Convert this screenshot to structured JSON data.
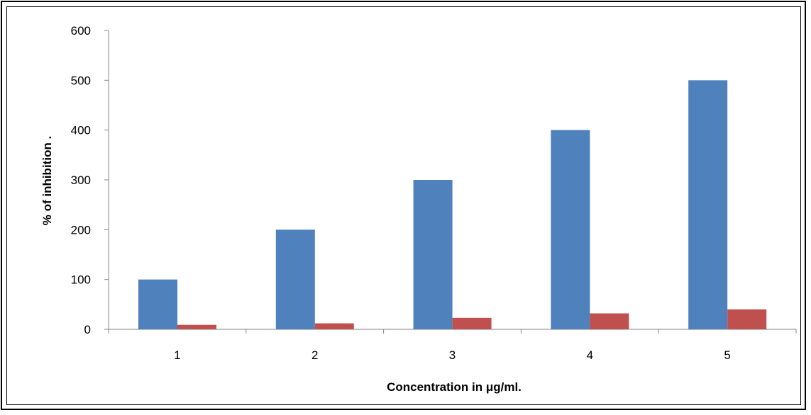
{
  "chart_data": {
    "type": "bar",
    "categories": [
      "1",
      "2",
      "3",
      "4",
      "5"
    ],
    "series": [
      {
        "values": [
          100,
          200,
          300,
          400,
          500
        ],
        "color": "#4F81BD"
      },
      {
        "values": [
          9,
          12,
          23,
          32,
          40
        ],
        "color": "#C0504D"
      }
    ],
    "xlabel": "Concentration in μg/ml.",
    "ylabel": "% of inhibition .",
    "ylim": [
      0,
      600
    ],
    "yticks": [
      "0",
      "100",
      "200",
      "300",
      "400",
      "500",
      "600"
    ],
    "grid": false,
    "legend": "none"
  }
}
